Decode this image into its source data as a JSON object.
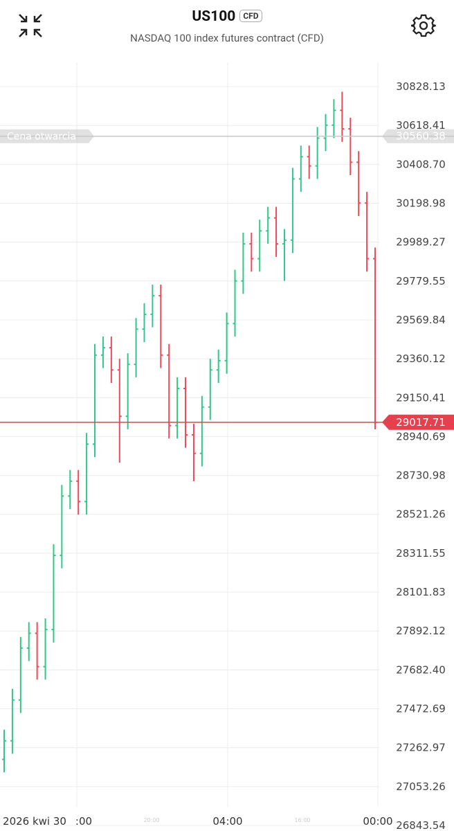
{
  "header": {
    "title": "US100",
    "badge": "CFD",
    "subtitle": "NASDAQ 100 index futures contract (CFD)"
  },
  "chart_data": {
    "type": "ohlc",
    "up_color": "#33c68a",
    "down_color": "#ef4a5a",
    "open": [
      27200,
      27300,
      27520,
      27800,
      27880,
      27700,
      27900,
      28300,
      28620,
      28700,
      28590,
      28900,
      29380,
      29420,
      29300,
      29050,
      29330,
      29520,
      29600,
      29700,
      29380,
      29000,
      29200,
      28950,
      28850,
      29100,
      29300,
      29350,
      29550,
      29780,
      29980,
      29900,
      30050,
      30120,
      29980,
      30000,
      30330,
      30450,
      30400,
      30550,
      30620,
      30700,
      30600,
      30420,
      30200,
      29900
    ],
    "high": [
      27360,
      27580,
      27860,
      27940,
      27940,
      27960,
      28360,
      28680,
      28760,
      28760,
      28960,
      29440,
      29480,
      29480,
      29360,
      29390,
      29580,
      29660,
      29760,
      29760,
      29440,
      29260,
      29260,
      29010,
      29160,
      29360,
      29410,
      29610,
      29840,
      30040,
      30040,
      30110,
      30180,
      30180,
      30060,
      30390,
      30510,
      30510,
      30610,
      30680,
      30760,
      30800,
      30660,
      30480,
      30260,
      29960
    ],
    "low": [
      27130,
      27230,
      27450,
      27730,
      27630,
      27630,
      27830,
      28230,
      28550,
      28520,
      28520,
      28830,
      29310,
      29230,
      28800,
      28980,
      29260,
      29450,
      29530,
      29310,
      28930,
      28930,
      28880,
      28700,
      28780,
      29030,
      29230,
      29280,
      29480,
      29710,
      29830,
      29830,
      29980,
      29910,
      29780,
      29930,
      30260,
      30330,
      30330,
      30480,
      30550,
      30530,
      30350,
      30130,
      29830,
      28980
    ],
    "close": [
      27300,
      27520,
      27800,
      27880,
      27700,
      27900,
      28300,
      28620,
      28700,
      28590,
      28900,
      29380,
      29420,
      29300,
      29050,
      29330,
      29520,
      29600,
      29700,
      29380,
      29000,
      29200,
      28950,
      28850,
      29100,
      29300,
      29350,
      29550,
      29780,
      29980,
      29900,
      30050,
      30120,
      29980,
      30000,
      30330,
      30450,
      30400,
      30550,
      30620,
      30700,
      30600,
      30420,
      30200,
      29900,
      29017.71
    ],
    "ylim": [
      26813.66,
      30958.87
    ],
    "yticks": [
      30828.13,
      30618.41,
      {
        "value": 30408.7,
        "label": "30408.70"
      },
      30198.98,
      29989.27,
      29779.55,
      29569.84,
      29360.12,
      29150.41,
      28940.69,
      28730.98,
      28521.26,
      28311.55,
      28101.83,
      27892.12,
      {
        "value": 27682.4,
        "label": "27682.40"
      },
      27472.69,
      27262.97,
      27053.26,
      26843.54
    ],
    "grid": true,
    "open_price": 30560.38,
    "open_price_label": "Cena otwarcia",
    "open_price_color": "#c8c8c8",
    "current_price": 29017.71,
    "current_price_color": "#e5404d",
    "time_labels": [
      "2026 kwi 30",
      ":00",
      "20:00",
      "04:00",
      "16:00",
      "00:00"
    ]
  }
}
